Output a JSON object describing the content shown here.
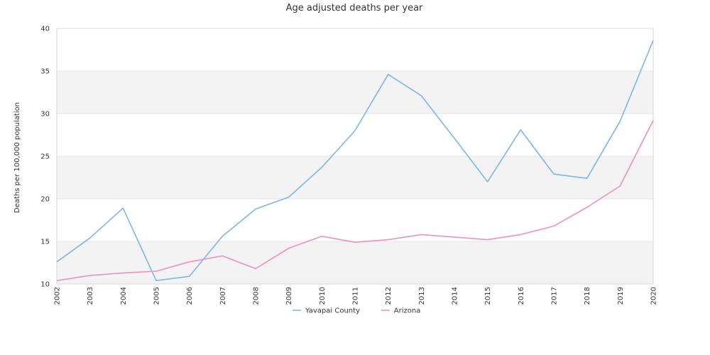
{
  "chart_data": {
    "type": "line",
    "title": "Age adjusted deaths per year",
    "xlabel": "",
    "ylabel": "Deaths per 100,000 population",
    "x": [
      "2002",
      "2003",
      "2004",
      "2005",
      "2006",
      "2007",
      "2008",
      "2009",
      "2010",
      "2011",
      "2012",
      "2013",
      "2014",
      "2015",
      "2016",
      "2017",
      "2018",
      "2019",
      "2020"
    ],
    "ylim": [
      10,
      40
    ],
    "yticks": [
      10,
      15,
      20,
      25,
      30,
      35,
      40
    ],
    "grid": "alternating horizontal bands",
    "legend_position": "bottom",
    "series": [
      {
        "name": "Yavapai County",
        "color": "#7cb5ec",
        "values": [
          12.6,
          15.4,
          18.9,
          10.4,
          10.9,
          15.6,
          18.8,
          20.2,
          23.7,
          28.0,
          34.6,
          32.1,
          27.1,
          22.0,
          28.1,
          22.9,
          22.4,
          29.1,
          38.6
        ]
      },
      {
        "name": "Arizona",
        "color": "#f08fbd",
        "values": [
          10.4,
          11.0,
          11.3,
          11.5,
          12.6,
          13.3,
          11.8,
          14.2,
          15.6,
          14.9,
          15.2,
          15.8,
          15.5,
          15.2,
          15.8,
          16.8,
          19.0,
          21.5,
          29.2
        ]
      }
    ]
  }
}
